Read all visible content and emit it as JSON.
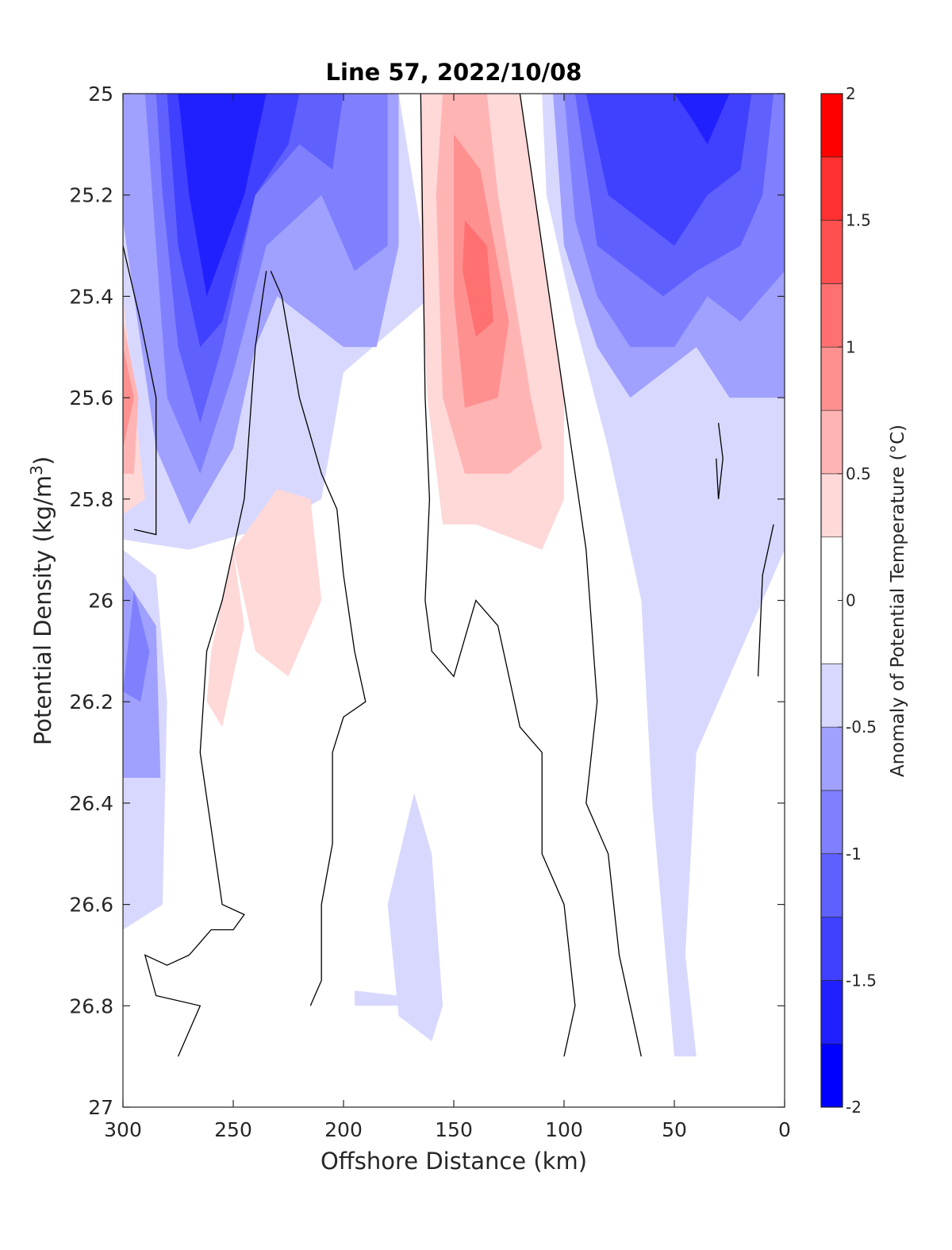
{
  "chart_data": {
    "type": "contour",
    "title": "Line 57, 2022/10/08",
    "xlabel": "Offshore Distance (km)",
    "ylabel": "Potential Density (kg/m",
    "ylabel_sup": "3",
    "ylabel_close": ")",
    "xlim": [
      300,
      0
    ],
    "ylim": [
      25,
      27
    ],
    "y_reversed": true,
    "x_reversed": true,
    "xticks": [
      300,
      250,
      200,
      150,
      100,
      50,
      0
    ],
    "xtick_labels": [
      "300",
      "250",
      "200",
      "150",
      "100",
      "50",
      "0"
    ],
    "yticks": [
      25,
      25.2,
      25.4,
      25.6,
      25.8,
      26,
      26.2,
      26.4,
      26.6,
      26.8,
      27
    ],
    "ytick_labels": [
      "25",
      "25.2",
      "25.4",
      "25.6",
      "25.8",
      "26",
      "26.2",
      "26.4",
      "26.6",
      "26.8",
      "27"
    ],
    "grid": false,
    "colorbar": {
      "label": "Anomaly of Potential Temperature (°C)",
      "range": [
        -2,
        2
      ],
      "ticks": [
        -2,
        -1.5,
        -1,
        -0.5,
        0,
        0.5,
        1,
        1.5,
        2
      ],
      "tick_labels": [
        "-2",
        "-1.5",
        "-1",
        "-0.5",
        "0",
        "0.5",
        "1",
        "1.5",
        "2"
      ],
      "levels": [
        -2,
        -1.75,
        -1.5,
        -1.25,
        -1,
        -0.75,
        -0.5,
        -0.25,
        0.25,
        0.5,
        0.75,
        1,
        1.25,
        1.5,
        1.75,
        2
      ],
      "colors": [
        "#0000ff",
        "#2020ff",
        "#4040ff",
        "#6060ff",
        "#8080ff",
        "#a0a0ff",
        "#d8d8ff",
        "#ffffff",
        "#ffd8d8",
        "#ffb4b4",
        "#ff9090",
        "#ff7070",
        "#ff5050",
        "#ff3030",
        "#ff0000"
      ]
    },
    "zero_contour_color": "#000000",
    "regions": [
      {
        "level": -0.25,
        "color": "#d8d8ff",
        "points": [
          [
            300,
            25
          ],
          [
            175,
            25
          ],
          [
            160,
            25.4
          ],
          [
            200,
            25.55
          ],
          [
            210,
            25.8
          ],
          [
            230,
            25.85
          ],
          [
            270,
            25.9
          ],
          [
            300,
            25.88
          ]
        ]
      },
      {
        "level": -0.25,
        "color": "#d8d8ff",
        "points": [
          [
            110,
            25
          ],
          [
            0,
            25
          ],
          [
            0,
            25.9
          ],
          [
            10,
            26
          ],
          [
            40,
            26.3
          ],
          [
            45,
            26.7
          ],
          [
            40,
            26.9
          ],
          [
            50,
            26.9
          ],
          [
            60,
            26.4
          ],
          [
            65,
            26
          ],
          [
            80,
            25.7
          ],
          [
            95,
            25.45
          ],
          [
            108,
            25.2
          ]
        ]
      },
      {
        "level": -0.25,
        "color": "#d8d8ff",
        "points": [
          [
            300,
            25.9
          ],
          [
            285,
            25.95
          ],
          [
            280,
            26.2
          ],
          [
            282,
            26.6
          ],
          [
            300,
            26.65
          ]
        ]
      },
      {
        "level": -0.25,
        "color": "#d8d8ff",
        "points": [
          [
            168,
            26.38
          ],
          [
            160,
            26.5
          ],
          [
            155,
            26.8
          ],
          [
            160,
            26.87
          ],
          [
            175,
            26.82
          ],
          [
            180,
            26.6
          ]
        ]
      },
      {
        "level": -0.25,
        "color": "#d8d8ff",
        "points": [
          [
            195,
            26.77
          ],
          [
            175,
            26.78
          ],
          [
            170,
            26.8
          ],
          [
            195,
            26.8
          ]
        ]
      },
      {
        "level": -0.5,
        "color": "#a0a0ff",
        "points": [
          [
            300,
            25
          ],
          [
            175,
            25
          ],
          [
            175,
            25.3
          ],
          [
            185,
            25.5
          ],
          [
            200,
            25.5
          ],
          [
            230,
            25.4
          ],
          [
            240,
            25.5
          ],
          [
            250,
            25.7
          ],
          [
            270,
            25.85
          ],
          [
            285,
            25.7
          ],
          [
            295,
            25.4
          ],
          [
            300,
            25.25
          ]
        ]
      },
      {
        "level": -0.5,
        "color": "#a0a0ff",
        "points": [
          [
            105,
            25
          ],
          [
            0,
            25
          ],
          [
            0,
            25.6
          ],
          [
            25,
            25.6
          ],
          [
            40,
            25.5
          ],
          [
            55,
            25.55
          ],
          [
            70,
            25.6
          ],
          [
            85,
            25.5
          ],
          [
            100,
            25.3
          ]
        ]
      },
      {
        "level": -0.5,
        "color": "#a0a0ff",
        "points": [
          [
            300,
            25.95
          ],
          [
            285,
            26.05
          ],
          [
            283,
            26.35
          ],
          [
            300,
            26.35
          ]
        ]
      },
      {
        "level": -0.75,
        "color": "#8080ff",
        "points": [
          [
            290,
            25
          ],
          [
            180,
            25
          ],
          [
            180,
            25.3
          ],
          [
            195,
            25.35
          ],
          [
            210,
            25.2
          ],
          [
            235,
            25.3
          ],
          [
            250,
            25.55
          ],
          [
            265,
            25.75
          ],
          [
            280,
            25.6
          ],
          [
            285,
            25.3
          ]
        ]
      },
      {
        "level": -0.75,
        "color": "#8080ff",
        "points": [
          [
            100,
            25
          ],
          [
            0,
            25
          ],
          [
            0,
            25.35
          ],
          [
            20,
            25.45
          ],
          [
            35,
            25.4
          ],
          [
            50,
            25.5
          ],
          [
            70,
            25.5
          ],
          [
            85,
            25.4
          ],
          [
            95,
            25.25
          ]
        ]
      },
      {
        "level": -0.75,
        "color": "#8080ff",
        "points": [
          [
            295,
            25.98
          ],
          [
            288,
            26.1
          ],
          [
            292,
            26.2
          ],
          [
            300,
            26.18
          ]
        ]
      },
      {
        "level": -1.0,
        "color": "#6060ff",
        "points": [
          [
            285,
            25
          ],
          [
            200,
            25
          ],
          [
            205,
            25.15
          ],
          [
            220,
            25.1
          ],
          [
            240,
            25.2
          ],
          [
            255,
            25.5
          ],
          [
            265,
            25.65
          ],
          [
            275,
            25.5
          ],
          [
            282,
            25.2
          ]
        ]
      },
      {
        "level": -1.0,
        "color": "#6060ff",
        "points": [
          [
            95,
            25
          ],
          [
            5,
            25
          ],
          [
            10,
            25.2
          ],
          [
            20,
            25.3
          ],
          [
            40,
            25.35
          ],
          [
            55,
            25.4
          ],
          [
            70,
            25.35
          ],
          [
            85,
            25.3
          ]
        ]
      },
      {
        "level": -1.25,
        "color": "#4040ff",
        "points": [
          [
            280,
            25
          ],
          [
            220,
            25
          ],
          [
            225,
            25.1
          ],
          [
            240,
            25.2
          ],
          [
            255,
            25.45
          ],
          [
            265,
            25.5
          ],
          [
            275,
            25.3
          ]
        ]
      },
      {
        "level": -1.25,
        "color": "#4040ff",
        "points": [
          [
            90,
            25
          ],
          [
            15,
            25
          ],
          [
            20,
            25.15
          ],
          [
            35,
            25.2
          ],
          [
            50,
            25.3
          ],
          [
            65,
            25.25
          ],
          [
            80,
            25.2
          ]
        ]
      },
      {
        "level": -1.5,
        "color": "#2020ff",
        "points": [
          [
            275,
            25
          ],
          [
            235,
            25
          ],
          [
            245,
            25.2
          ],
          [
            262,
            25.4
          ],
          [
            270,
            25.2
          ]
        ]
      },
      {
        "level": -1.5,
        "color": "#2020ff",
        "points": [
          [
            50,
            25
          ],
          [
            25,
            25
          ],
          [
            35,
            25.1
          ],
          [
            42,
            25.05
          ]
        ]
      },
      {
        "level": 0.25,
        "color": "#ffd8d8",
        "points": [
          [
            165,
            25
          ],
          [
            120,
            25
          ],
          [
            110,
            25.3
          ],
          [
            100,
            25.6
          ],
          [
            100,
            25.8
          ],
          [
            110,
            25.9
          ],
          [
            140,
            25.85
          ],
          [
            155,
            25.85
          ],
          [
            162,
            25.6
          ],
          [
            165,
            25.3
          ]
        ]
      },
      {
        "level": 0.25,
        "color": "#ffd8d8",
        "points": [
          [
            300,
            25.4
          ],
          [
            295,
            25.6
          ],
          [
            290,
            25.8
          ],
          [
            300,
            25.83
          ]
        ]
      },
      {
        "level": 0.25,
        "color": "#ffd8d8",
        "points": [
          [
            230,
            25.78
          ],
          [
            215,
            25.8
          ],
          [
            210,
            26.0
          ],
          [
            225,
            26.15
          ],
          [
            240,
            26.1
          ],
          [
            250,
            25.9
          ]
        ]
      },
      {
        "level": 0.25,
        "color": "#ffd8d8",
        "points": [
          [
            250,
            25.9
          ],
          [
            260,
            26.1
          ],
          [
            262,
            26.2
          ],
          [
            255,
            26.25
          ],
          [
            245,
            26.05
          ]
        ]
      },
      {
        "level": 0.5,
        "color": "#ffb4b4",
        "points": [
          [
            155,
            25
          ],
          [
            135,
            25
          ],
          [
            130,
            25.2
          ],
          [
            115,
            25.6
          ],
          [
            110,
            25.7
          ],
          [
            125,
            25.75
          ],
          [
            145,
            25.75
          ],
          [
            155,
            25.6
          ],
          [
            158,
            25.2
          ]
        ]
      },
      {
        "level": 0.5,
        "color": "#ffb4b4",
        "points": [
          [
            300,
            25.45
          ],
          [
            293,
            25.6
          ],
          [
            295,
            25.75
          ],
          [
            300,
            25.75
          ]
        ]
      },
      {
        "level": 0.75,
        "color": "#ff9090",
        "points": [
          [
            150,
            25.08
          ],
          [
            138,
            25.15
          ],
          [
            125,
            25.45
          ],
          [
            130,
            25.6
          ],
          [
            145,
            25.62
          ],
          [
            150,
            25.4
          ]
        ]
      },
      {
        "level": 0.75,
        "color": "#ff9090",
        "points": [
          [
            300,
            25.5
          ],
          [
            295,
            25.6
          ],
          [
            300,
            25.7
          ]
        ]
      },
      {
        "level": 1.0,
        "color": "#ff7070",
        "points": [
          [
            145,
            25.25
          ],
          [
            135,
            25.3
          ],
          [
            132,
            25.45
          ],
          [
            140,
            25.48
          ],
          [
            146,
            25.35
          ]
        ]
      }
    ],
    "zero_contours": [
      [
        [
          300,
          25.3
        ],
        [
          292,
          25.45
        ],
        [
          285,
          25.6
        ],
        [
          285,
          25.87
        ],
        [
          295,
          25.86
        ]
      ],
      [
        [
          233,
          25.35
        ],
        [
          228,
          25.4
        ],
        [
          220,
          25.6
        ],
        [
          210,
          25.75
        ],
        [
          203,
          25.82
        ],
        [
          200,
          25.95
        ],
        [
          195,
          26.1
        ],
        [
          190,
          26.2
        ],
        [
          200,
          26.23
        ],
        [
          205,
          26.3
        ],
        [
          205,
          26.48
        ],
        [
          210,
          26.6
        ],
        [
          210,
          26.75
        ],
        [
          215,
          26.8
        ]
      ],
      [
        [
          235,
          25.35
        ],
        [
          240,
          25.5
        ],
        [
          245,
          25.8
        ],
        [
          255,
          26.0
        ],
        [
          262,
          26.1
        ],
        [
          265,
          26.3
        ],
        [
          260,
          26.45
        ],
        [
          255,
          26.6
        ],
        [
          245,
          26.62
        ],
        [
          250,
          26.65
        ],
        [
          260,
          26.65
        ],
        [
          270,
          26.7
        ],
        [
          280,
          26.72
        ],
        [
          290,
          26.7
        ],
        [
          285,
          26.78
        ],
        [
          265,
          26.8
        ],
        [
          270,
          26.85
        ],
        [
          275,
          26.9
        ]
      ],
      [
        [
          165,
          25
        ],
        [
          163,
          25.6
        ],
        [
          161,
          25.8
        ],
        [
          163,
          26.0
        ],
        [
          160,
          26.1
        ],
        [
          150,
          26.15
        ],
        [
          140,
          26.0
        ],
        [
          130,
          26.05
        ],
        [
          120,
          26.25
        ],
        [
          110,
          26.3
        ],
        [
          110,
          26.5
        ],
        [
          100,
          26.6
        ],
        [
          95,
          26.8
        ],
        [
          100,
          26.9
        ]
      ],
      [
        [
          120,
          25
        ],
        [
          110,
          25.3
        ],
        [
          100,
          25.6
        ],
        [
          90,
          25.9
        ],
        [
          85,
          26.2
        ],
        [
          90,
          26.4
        ],
        [
          80,
          26.5
        ],
        [
          75,
          26.7
        ],
        [
          70,
          26.8
        ],
        [
          65,
          26.9
        ]
      ],
      [
        [
          30,
          25.65
        ],
        [
          28,
          25.72
        ],
        [
          30,
          25.8
        ],
        [
          31,
          25.72
        ]
      ],
      [
        [
          5,
          25.85
        ],
        [
          10,
          25.95
        ],
        [
          12,
          26.15
        ]
      ]
    ]
  }
}
